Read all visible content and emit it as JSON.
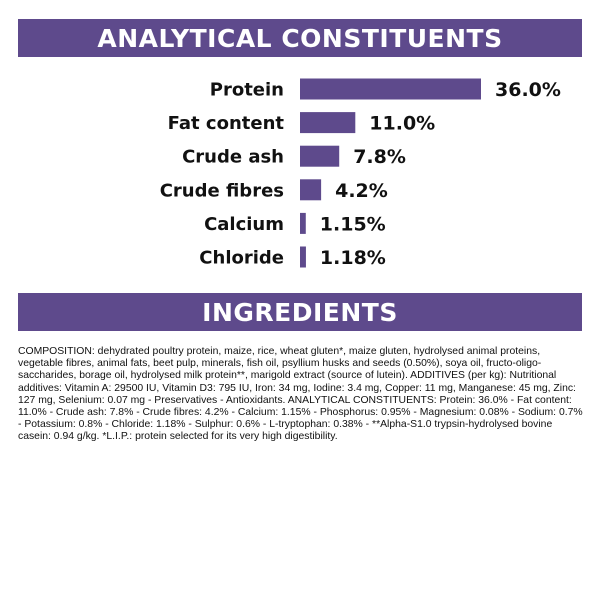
{
  "sections": {
    "analytical_title": "ANALYTICAL CONSTITUENTS",
    "ingredients_title": "INGREDIENTS"
  },
  "colors": {
    "accent": "#5e4a8c"
  },
  "chart_data": {
    "type": "bar",
    "orientation": "horizontal",
    "title": "ANALYTICAL CONSTITUENTS",
    "categories": [
      "Protein",
      "Fat content",
      "Crude ash",
      "Crude fibres",
      "Calcium",
      "Chloride"
    ],
    "values": [
      36.0,
      11.0,
      7.8,
      4.2,
      1.15,
      1.18
    ],
    "value_labels": [
      "36.0%",
      "11.0%",
      "7.8%",
      "4.2%",
      "1.15%",
      "1.18%"
    ],
    "grid": false,
    "legend": "none"
  },
  "ingredients_text": "COMPOSITION: dehydrated poultry protein, maize, rice, wheat gluten*, maize gluten, hydrolysed animal proteins, vegetable fibres, animal fats, beet pulp, minerals, fish oil, psyllium husks and seeds (0.50%), soya oil, fructo-oligo-saccharides, borage oil, hydrolysed milk protein**, marigold extract (source of lutein). ADDITIVES (per kg): Nutritional additives: Vitamin A: 29500 IU, Vitamin D3: 795 IU, Iron: 34 mg, Iodine: 3.4 mg, Copper: 11 mg, Manganese: 45 mg, Zinc: 127 mg, Selenium: 0.07 mg - Preservatives - Antioxidants. ANALYTICAL CONSTITUENTS: Protein: 36.0% - Fat content: 11.0% - Crude ash: 7.8% - Crude fibres: 4.2% - Calcium: 1.15% - Phosphorus: 0.95% - Magnesium: 0.08% - Sodium: 0.7% - Potassium: 0.8% - Chloride: 1.18% - Sulphur: 0.6% - L-tryptophan: 0.38% - **Alpha-S1.0 trypsin-hydrolysed bovine casein: 0.94 g/kg. *L.I.P.: protein selected for its very high digestibility."
}
